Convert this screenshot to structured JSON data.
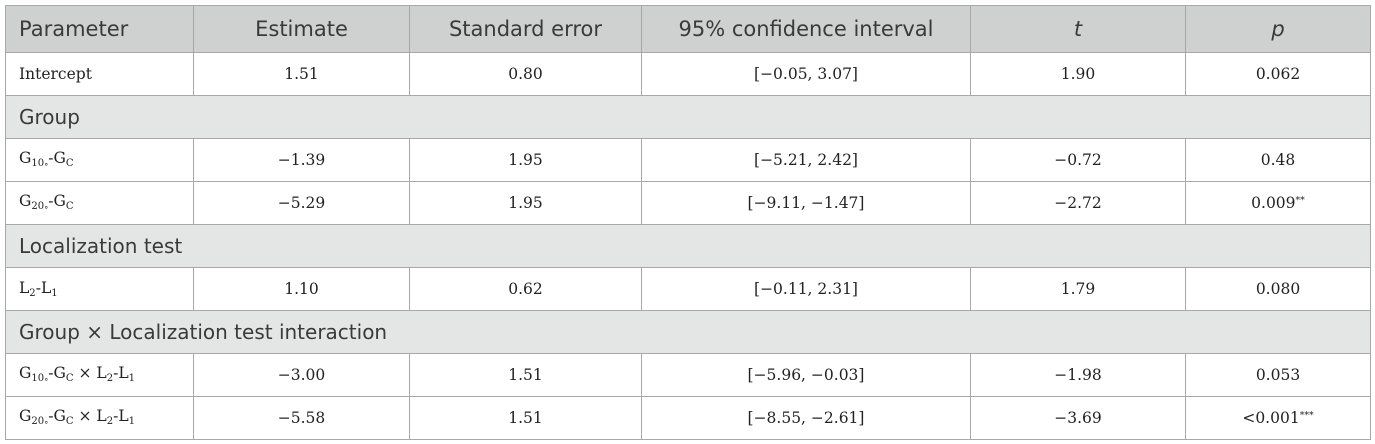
{
  "header": {
    "parameter": "Parameter",
    "estimate": "Estimate",
    "standard_error": "Standard error",
    "ci": "95% confidence interval",
    "t": "t",
    "p": "p"
  },
  "rows": {
    "intercept": {
      "label": "Intercept",
      "estimate": "1.51",
      "se": "0.80",
      "ci": "[−0.05, 3.07]",
      "t": "1.90",
      "p": "0.062"
    },
    "group_title": "Group",
    "g10": {
      "g": "G",
      "sub1": "10",
      "deg": "°",
      "dash": "-G",
      "sub2": "C",
      "estimate": "−1.39",
      "se": "1.95",
      "ci": "[−5.21, 2.42]",
      "t": "−0.72",
      "p": "0.48"
    },
    "g20": {
      "g": "G",
      "sub1": "20",
      "deg": "°",
      "dash": "-G",
      "sub2": "C",
      "estimate": "−5.29",
      "se": "1.95",
      "ci": "[−9.11, −1.47]",
      "t": "−2.72",
      "p": "0.009",
      "p_sig": "**"
    },
    "loc_title": "Localization test",
    "l21": {
      "l": "L",
      "sub1": "2",
      "dash": "-L",
      "sub2": "1",
      "estimate": "1.10",
      "se": "0.62",
      "ci": "[−0.11, 2.31]",
      "t": "1.79",
      "p": "0.080"
    },
    "inter_title": "Group × Localization test interaction",
    "i10": {
      "g": "G",
      "sub1": "10",
      "deg": "°",
      "dash": "-G",
      "sub2": "C",
      "times": " × L",
      "sub3": "2",
      "dash2": "-L",
      "sub4": "1",
      "estimate": "−3.00",
      "se": "1.51",
      "ci": "[−5.96, −0.03]",
      "t": "−1.98",
      "p": "0.053"
    },
    "i20": {
      "g": "G",
      "sub1": "20",
      "deg": "°",
      "dash": "-G",
      "sub2": "C",
      "times": " × L",
      "sub3": "2",
      "dash2": "-L",
      "sub4": "1",
      "estimate": "−5.58",
      "se": "1.51",
      "ci": "[−8.55, −2.61]",
      "t": "−3.69",
      "p": "<0.001",
      "p_sig": "***"
    }
  }
}
